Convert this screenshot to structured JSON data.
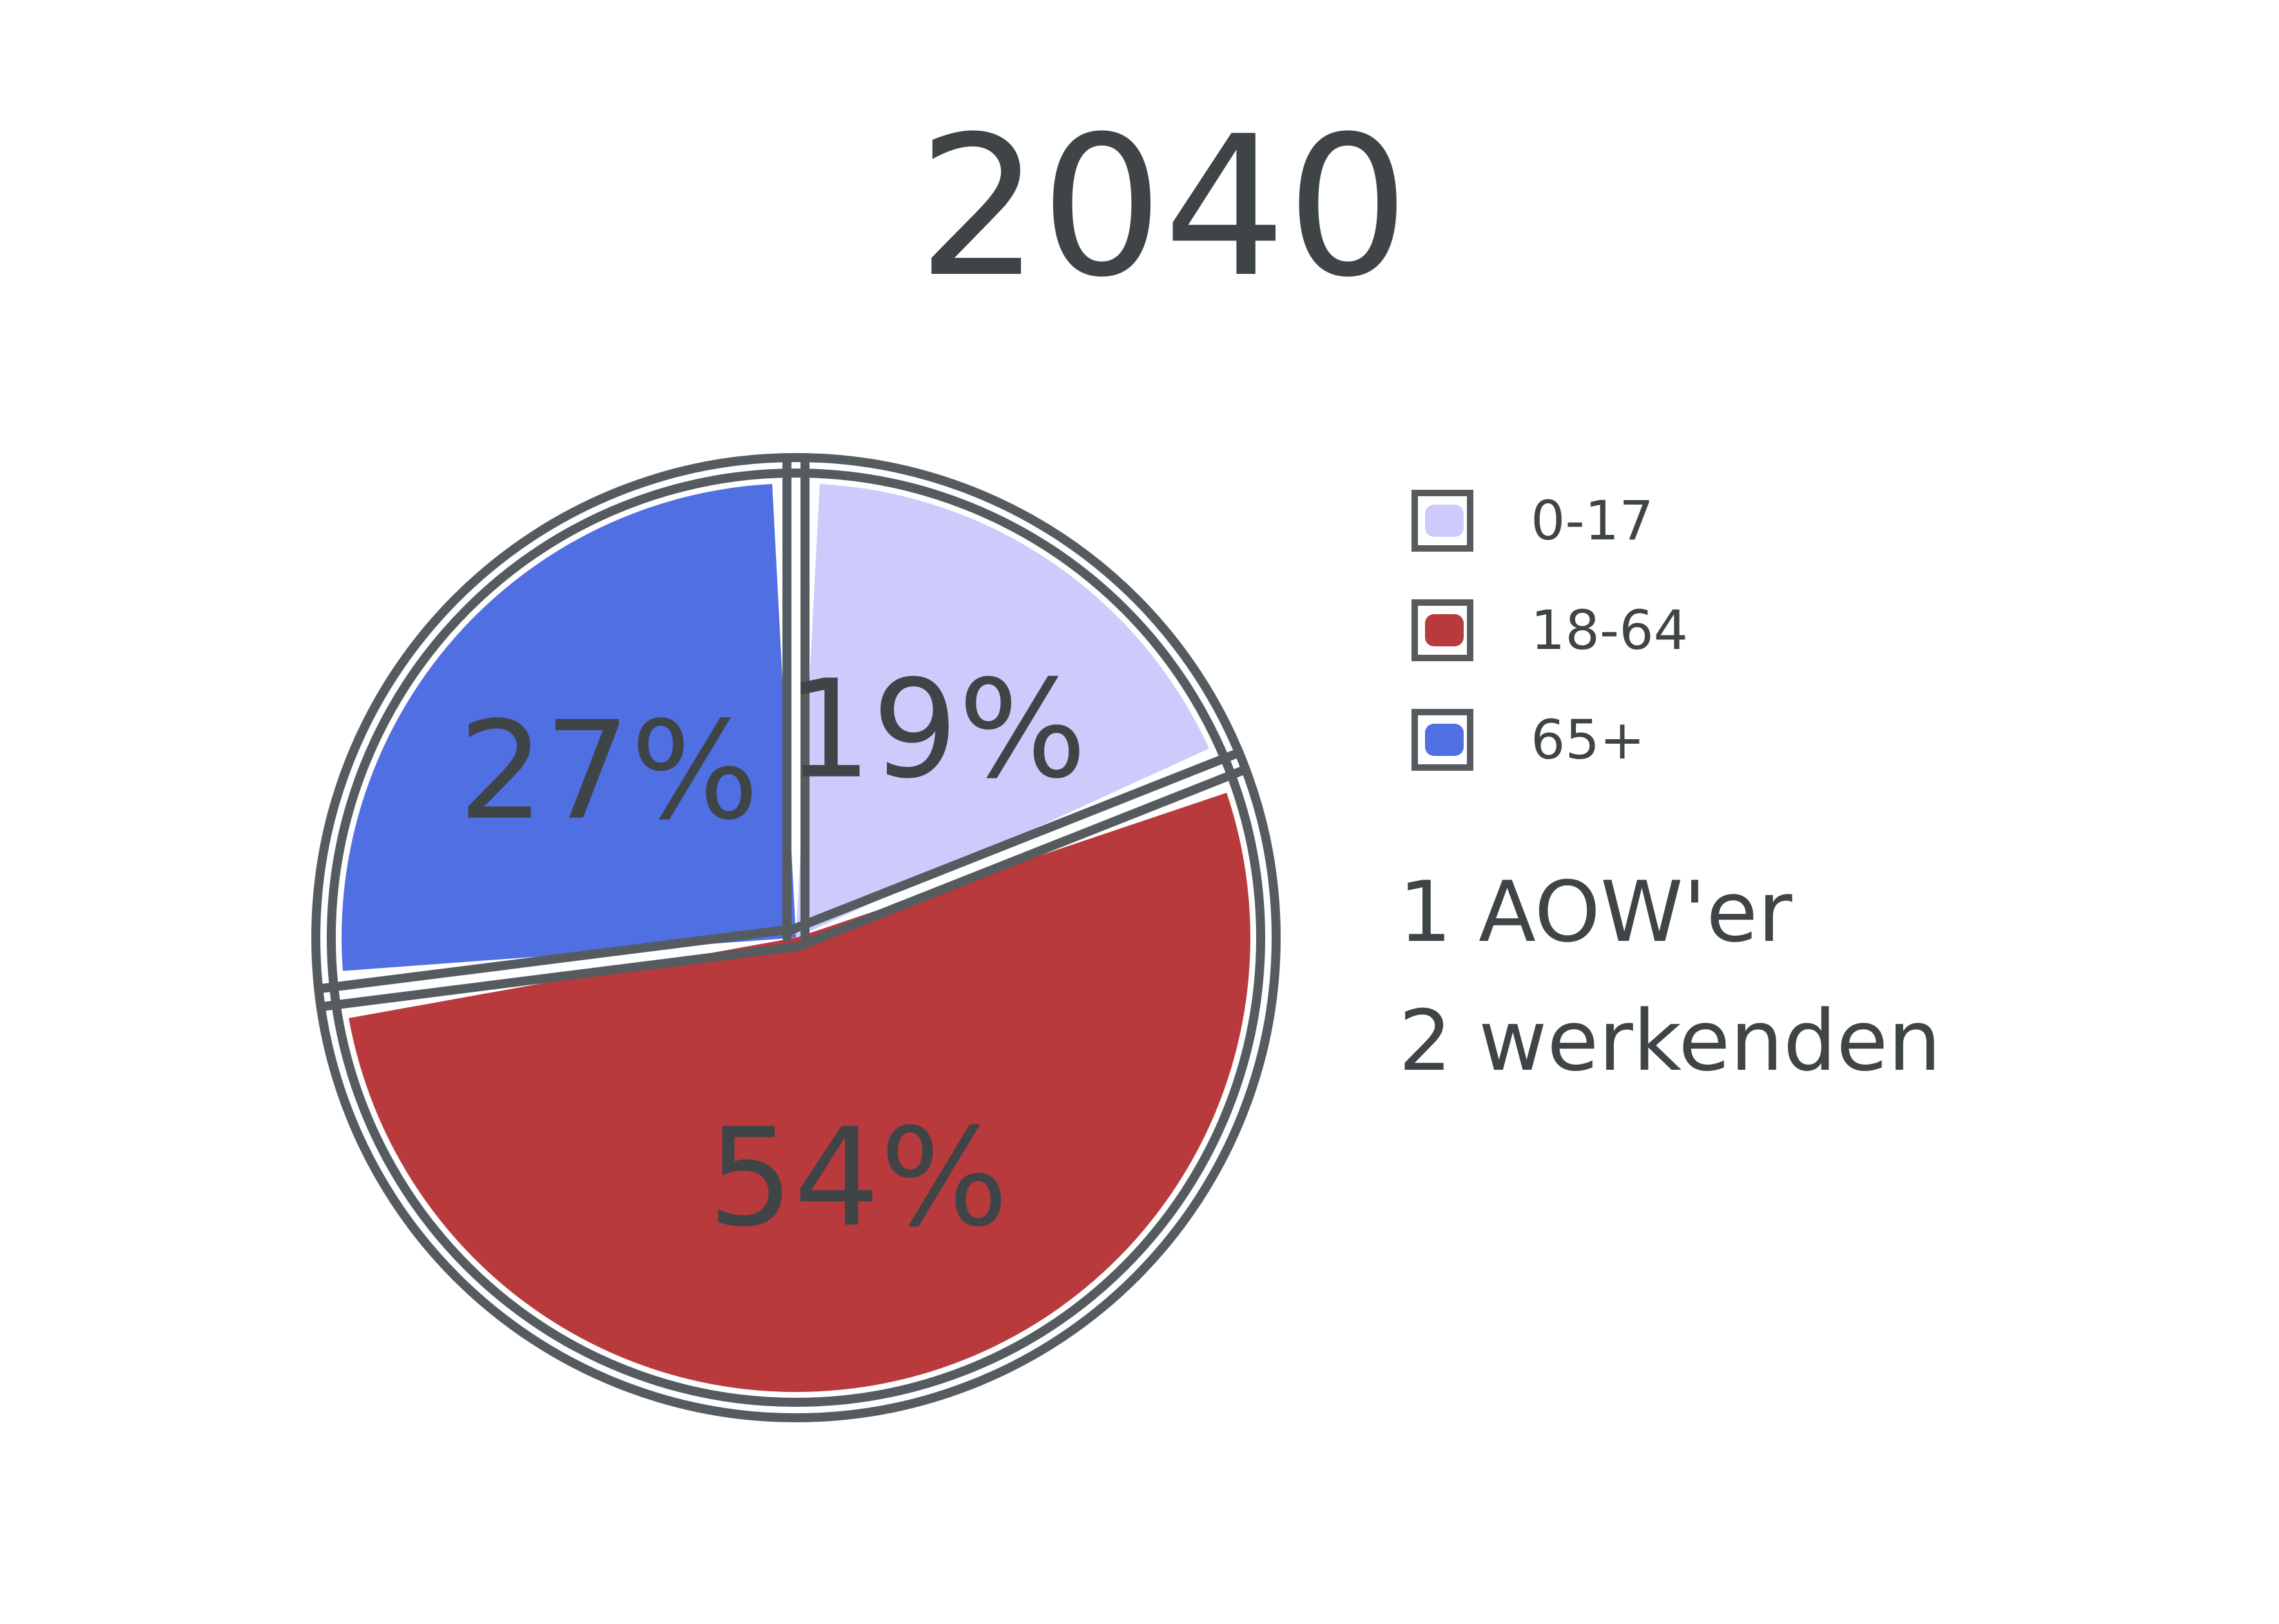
{
  "chart_data": {
    "type": "pie",
    "title": "2040",
    "slices": [
      {
        "label": "0-17",
        "value": 19,
        "display": "19%",
        "color": "#cccbfb"
      },
      {
        "label": "18-64",
        "value": 54,
        "display": "54%",
        "color": "#b93a3c"
      },
      {
        "label": "65+",
        "value": 27,
        "display": "27%",
        "color": "#4f6fe3"
      }
    ],
    "legend": {
      "placement": "right",
      "items": [
        {
          "label": "0-17",
          "color": "#cccbfb"
        },
        {
          "label": "18-64",
          "color": "#b93a3c"
        },
        {
          "label": "65+",
          "color": "#4f6fe3"
        }
      ]
    },
    "annotations": [
      "1 AOW'er",
      "2 werkenden"
    ],
    "outline_color": "#555b5e"
  }
}
